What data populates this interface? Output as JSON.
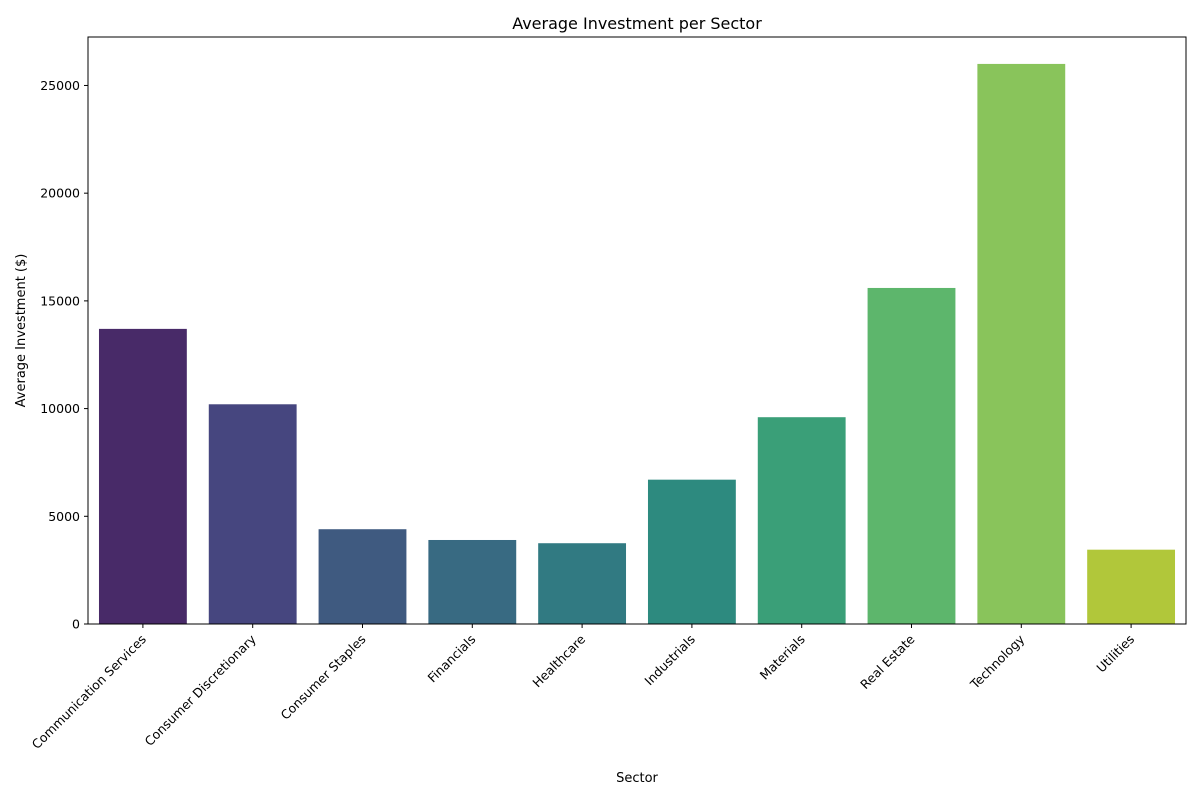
{
  "chart_data": {
    "type": "bar",
    "title": "Average Investment per Sector",
    "xlabel": "Sector",
    "ylabel": "Average Investment ($)",
    "categories": [
      "Communication Services",
      "Consumer Discretionary",
      "Consumer Staples",
      "Financials",
      "Healthcare",
      "Industrials",
      "Materials",
      "Real Estate",
      "Technology",
      "Utilities"
    ],
    "values": [
      13700,
      10200,
      4400,
      3900,
      3750,
      6700,
      9600,
      15600,
      26000,
      3450
    ],
    "colors": [
      "#482a68",
      "#46467f",
      "#3f5a80",
      "#386a82",
      "#317a82",
      "#2d8a7f",
      "#3a9f78",
      "#5db66c",
      "#89c45b",
      "#b1c73a"
    ],
    "ylim": [
      0,
      27250
    ],
    "yticks": [
      0,
      5000,
      10000,
      15000,
      20000,
      25000
    ],
    "grid": false,
    "legend": "none"
  }
}
